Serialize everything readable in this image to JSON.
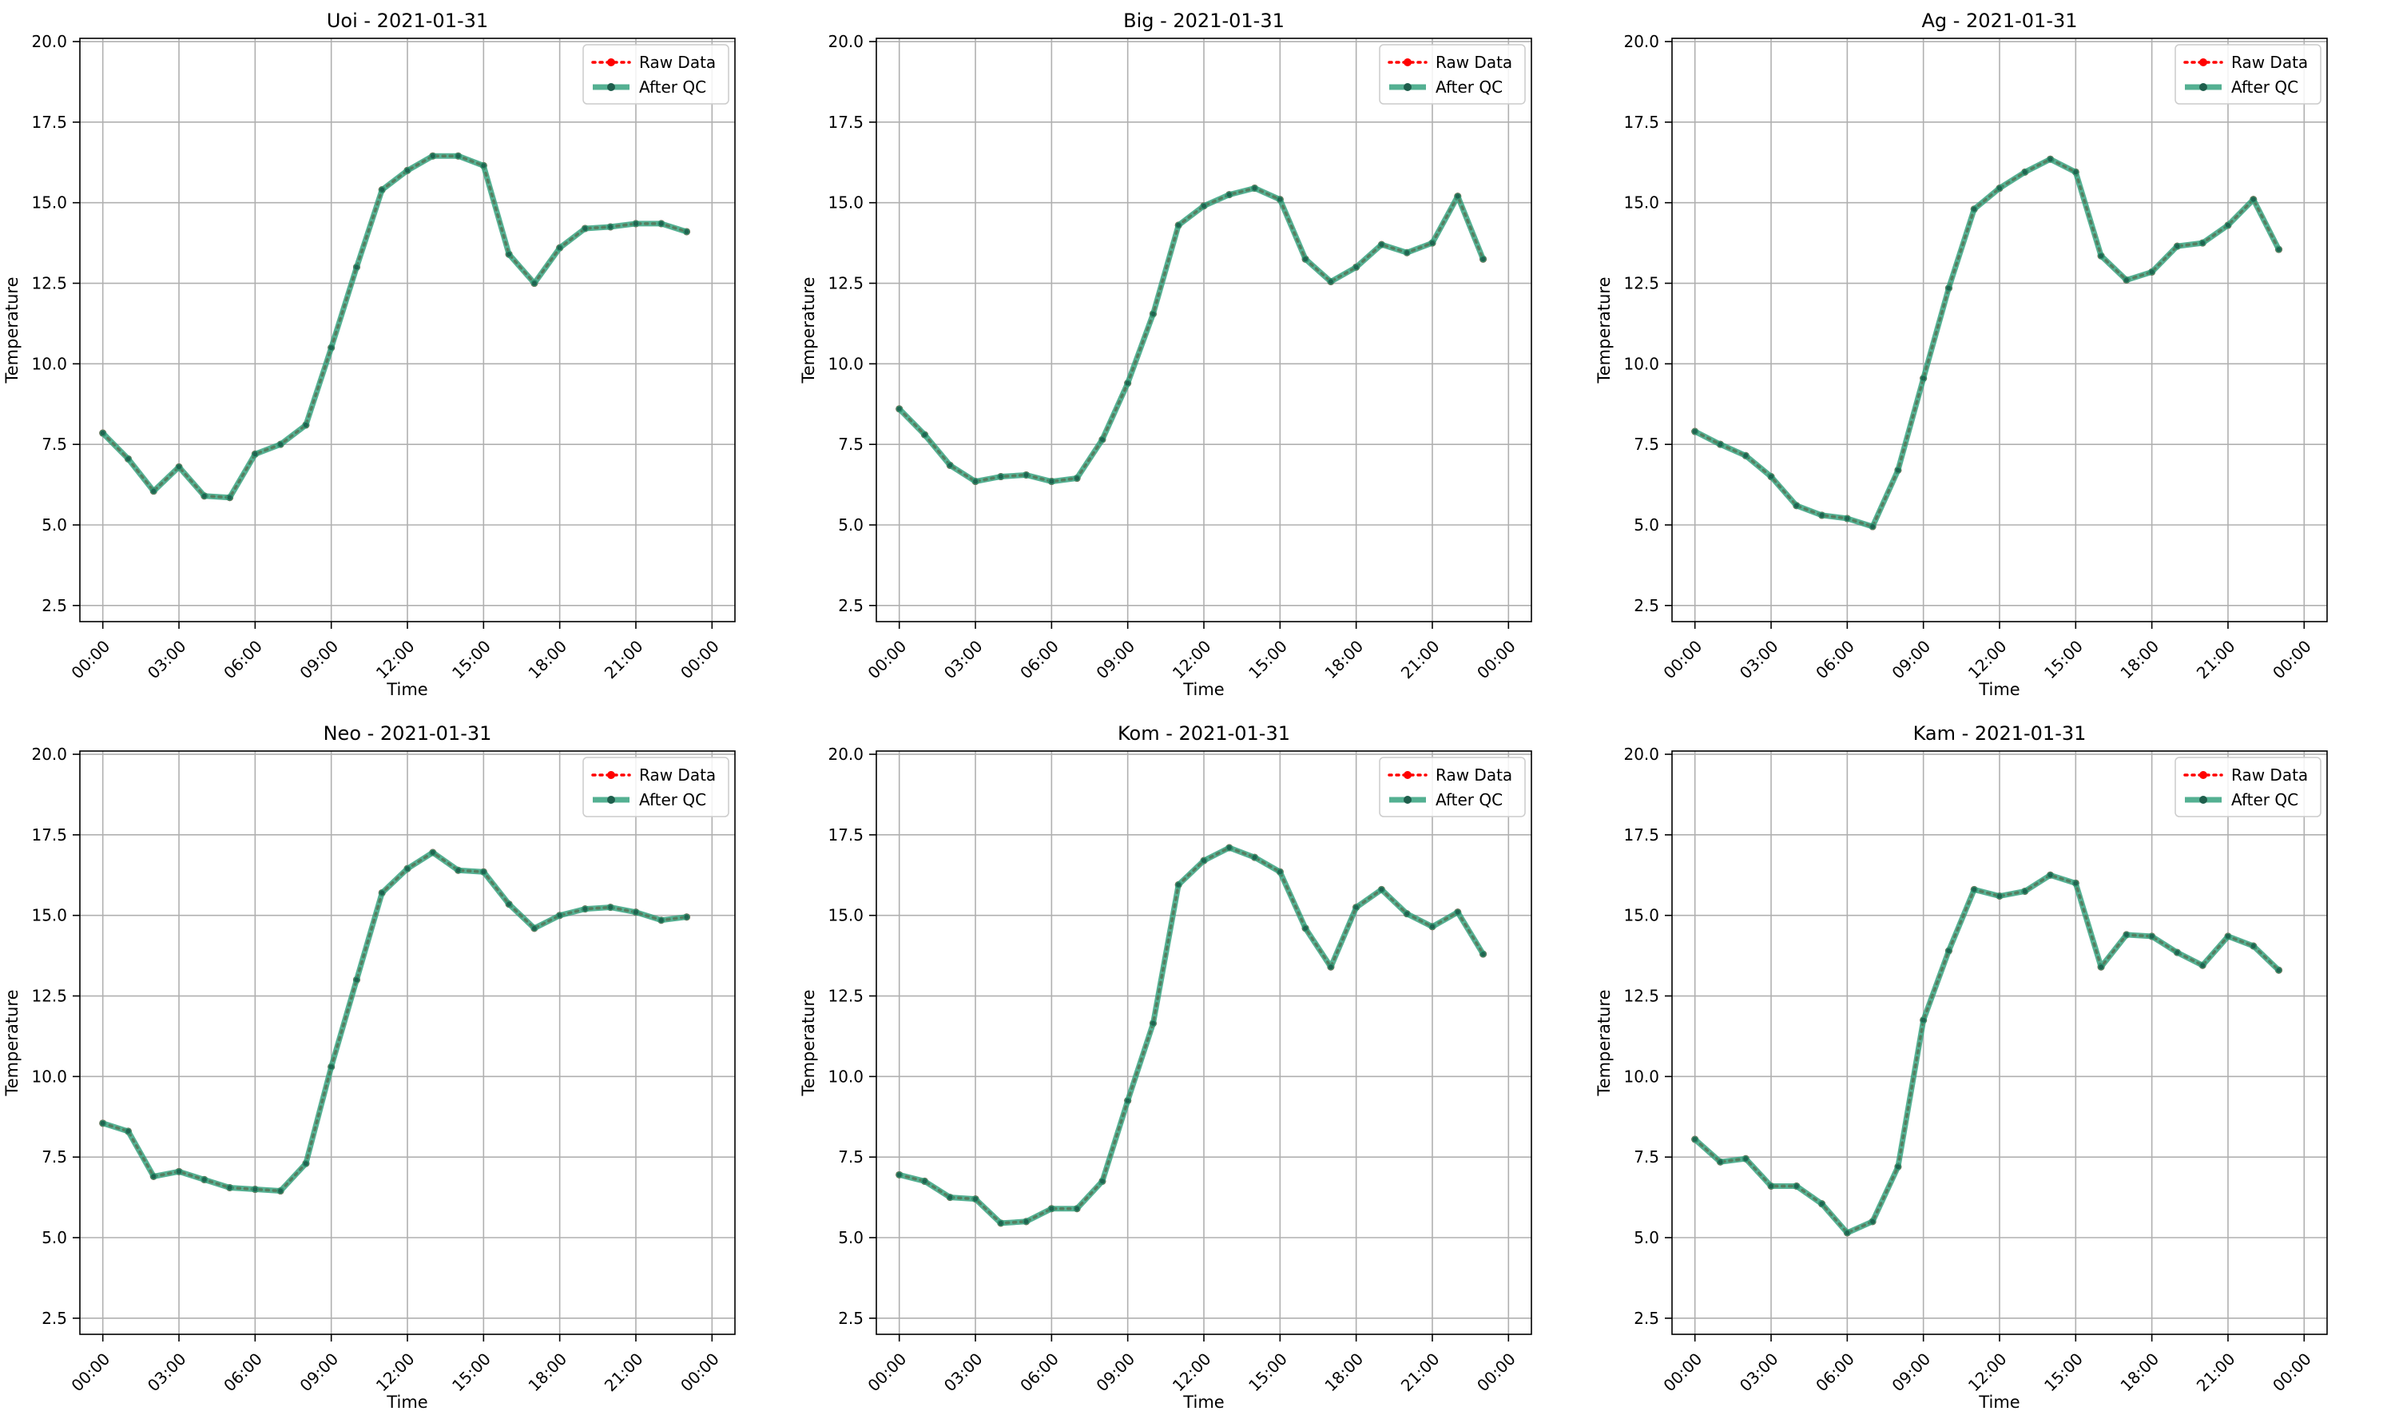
{
  "figure": {
    "xlabel": "Time",
    "ylabel": "Temperature",
    "legend": {
      "raw_label": "Raw Data",
      "qc_label": "After QC",
      "placement": "top-right"
    },
    "colors": {
      "raw": "#ff0000",
      "qc": "#2a9d78",
      "grid": "#b0b0b0",
      "axis": "#000000"
    }
  },
  "chart_data": [
    {
      "type": "line",
      "title": "Uoi - 2021-01-31",
      "xlabel": "Time",
      "ylabel": "Temperature",
      "ylim": [
        2.0,
        20.1
      ],
      "yticks": [
        "2.5",
        "5.0",
        "7.5",
        "10.0",
        "12.5",
        "15.0",
        "17.5",
        "20.0"
      ],
      "xticks": [
        "00:00",
        "03:00",
        "06:00",
        "09:00",
        "12:00",
        "15:00",
        "18:00",
        "21:00",
        "00:00"
      ],
      "grid": true,
      "legend": "top-right",
      "x": [
        "00:00",
        "01:00",
        "02:00",
        "03:00",
        "04:00",
        "05:00",
        "06:00",
        "07:00",
        "08:00",
        "09:00",
        "10:00",
        "11:00",
        "12:00",
        "13:00",
        "14:00",
        "15:00",
        "16:00",
        "17:00",
        "18:00",
        "19:00",
        "20:00",
        "21:00",
        "22:00",
        "23:00"
      ],
      "series": [
        {
          "name": "Raw Data",
          "values": [
            7.85,
            7.05,
            6.05,
            6.8,
            5.9,
            5.85,
            7.2,
            7.5,
            8.1,
            10.5,
            13.0,
            15.4,
            16.0,
            16.45,
            16.45,
            16.15,
            13.4,
            12.5,
            13.6,
            14.2,
            14.25,
            14.35,
            14.35,
            14.1
          ]
        },
        {
          "name": "After QC",
          "values": [
            7.85,
            7.05,
            6.05,
            6.8,
            5.9,
            5.85,
            7.2,
            7.5,
            8.1,
            10.5,
            13.0,
            15.4,
            16.0,
            16.45,
            16.45,
            16.15,
            13.4,
            12.5,
            13.6,
            14.2,
            14.25,
            14.35,
            14.35,
            14.1
          ]
        }
      ]
    },
    {
      "type": "line",
      "title": "Big - 2021-01-31",
      "xlabel": "Time",
      "ylabel": "Temperature",
      "ylim": [
        2.0,
        20.1
      ],
      "yticks": [
        "2.5",
        "5.0",
        "7.5",
        "10.0",
        "12.5",
        "15.0",
        "17.5",
        "20.0"
      ],
      "xticks": [
        "00:00",
        "03:00",
        "06:00",
        "09:00",
        "12:00",
        "15:00",
        "18:00",
        "21:00",
        "00:00"
      ],
      "grid": true,
      "legend": "top-right",
      "x": [
        "00:00",
        "01:00",
        "02:00",
        "03:00",
        "04:00",
        "05:00",
        "06:00",
        "07:00",
        "08:00",
        "09:00",
        "10:00",
        "11:00",
        "12:00",
        "13:00",
        "14:00",
        "15:00",
        "16:00",
        "17:00",
        "18:00",
        "19:00",
        "20:00",
        "21:00",
        "22:00",
        "23:00"
      ],
      "series": [
        {
          "name": "Raw Data",
          "values": [
            8.6,
            7.8,
            6.85,
            6.35,
            6.5,
            6.55,
            6.35,
            6.45,
            7.65,
            9.4,
            11.55,
            14.3,
            14.9,
            15.25,
            15.45,
            15.1,
            13.25,
            12.55,
            13.0,
            13.7,
            13.45,
            13.75,
            15.2,
            13.25
          ]
        },
        {
          "name": "After QC",
          "values": [
            8.6,
            7.8,
            6.85,
            6.35,
            6.5,
            6.55,
            6.35,
            6.45,
            7.65,
            9.4,
            11.55,
            14.3,
            14.9,
            15.25,
            15.45,
            15.1,
            13.25,
            12.55,
            13.0,
            13.7,
            13.45,
            13.75,
            15.2,
            13.25
          ]
        }
      ]
    },
    {
      "type": "line",
      "title": "Ag - 2021-01-31",
      "xlabel": "Time",
      "ylabel": "Temperature",
      "ylim": [
        2.0,
        20.1
      ],
      "yticks": [
        "2.5",
        "5.0",
        "7.5",
        "10.0",
        "12.5",
        "15.0",
        "17.5",
        "20.0"
      ],
      "xticks": [
        "00:00",
        "03:00",
        "06:00",
        "09:00",
        "12:00",
        "15:00",
        "18:00",
        "21:00",
        "00:00"
      ],
      "grid": true,
      "legend": "top-right",
      "x": [
        "00:00",
        "01:00",
        "02:00",
        "03:00",
        "04:00",
        "05:00",
        "06:00",
        "07:00",
        "08:00",
        "09:00",
        "10:00",
        "11:00",
        "12:00",
        "13:00",
        "14:00",
        "15:00",
        "16:00",
        "17:00",
        "18:00",
        "19:00",
        "20:00",
        "21:00",
        "22:00",
        "23:00"
      ],
      "series": [
        {
          "name": "Raw Data",
          "values": [
            7.9,
            7.5,
            7.15,
            6.5,
            5.6,
            5.3,
            5.2,
            4.95,
            6.7,
            9.55,
            12.35,
            14.8,
            15.45,
            15.95,
            16.35,
            15.95,
            13.35,
            12.6,
            12.85,
            13.65,
            13.75,
            14.3,
            15.1,
            13.55
          ]
        },
        {
          "name": "After QC",
          "values": [
            7.9,
            7.5,
            7.15,
            6.5,
            5.6,
            5.3,
            5.2,
            4.95,
            6.7,
            9.55,
            12.35,
            14.8,
            15.45,
            15.95,
            16.35,
            15.95,
            13.35,
            12.6,
            12.85,
            13.65,
            13.75,
            14.3,
            15.1,
            13.55
          ]
        }
      ]
    },
    {
      "type": "line",
      "title": "Neo - 2021-01-31",
      "xlabel": "Time",
      "ylabel": "Temperature",
      "ylim": [
        2.0,
        20.1
      ],
      "yticks": [
        "2.5",
        "5.0",
        "7.5",
        "10.0",
        "12.5",
        "15.0",
        "17.5",
        "20.0"
      ],
      "xticks": [
        "00:00",
        "03:00",
        "06:00",
        "09:00",
        "12:00",
        "15:00",
        "18:00",
        "21:00",
        "00:00"
      ],
      "grid": true,
      "legend": "top-right",
      "x": [
        "00:00",
        "01:00",
        "02:00",
        "03:00",
        "04:00",
        "05:00",
        "06:00",
        "07:00",
        "08:00",
        "09:00",
        "10:00",
        "11:00",
        "12:00",
        "13:00",
        "14:00",
        "15:00",
        "16:00",
        "17:00",
        "18:00",
        "19:00",
        "20:00",
        "21:00",
        "22:00",
        "23:00"
      ],
      "series": [
        {
          "name": "Raw Data",
          "values": [
            8.55,
            8.3,
            6.9,
            7.05,
            6.8,
            6.55,
            6.5,
            6.45,
            7.3,
            10.3,
            13.0,
            15.7,
            16.45,
            16.95,
            16.4,
            16.35,
            15.35,
            14.6,
            15.0,
            15.2,
            15.25,
            15.1,
            14.85,
            14.95
          ]
        },
        {
          "name": "After QC",
          "values": [
            8.55,
            8.3,
            6.9,
            7.05,
            6.8,
            6.55,
            6.5,
            6.45,
            7.3,
            10.3,
            13.0,
            15.7,
            16.45,
            16.95,
            16.4,
            16.35,
            15.35,
            14.6,
            15.0,
            15.2,
            15.25,
            15.1,
            14.85,
            14.95
          ]
        }
      ]
    },
    {
      "type": "line",
      "title": "Kom - 2021-01-31",
      "xlabel": "Time",
      "ylabel": "Temperature",
      "ylim": [
        2.0,
        20.1
      ],
      "yticks": [
        "2.5",
        "5.0",
        "7.5",
        "10.0",
        "12.5",
        "15.0",
        "17.5",
        "20.0"
      ],
      "xticks": [
        "00:00",
        "03:00",
        "06:00",
        "09:00",
        "12:00",
        "15:00",
        "18:00",
        "21:00",
        "00:00"
      ],
      "grid": true,
      "legend": "top-right",
      "x": [
        "00:00",
        "01:00",
        "02:00",
        "03:00",
        "04:00",
        "05:00",
        "06:00",
        "07:00",
        "08:00",
        "09:00",
        "10:00",
        "11:00",
        "12:00",
        "13:00",
        "14:00",
        "15:00",
        "16:00",
        "17:00",
        "18:00",
        "19:00",
        "20:00",
        "21:00",
        "22:00",
        "23:00"
      ],
      "series": [
        {
          "name": "Raw Data",
          "values": [
            6.95,
            6.75,
            6.25,
            6.2,
            5.45,
            5.5,
            5.9,
            5.9,
            6.75,
            9.25,
            11.65,
            15.95,
            16.7,
            17.1,
            16.8,
            16.35,
            14.6,
            13.4,
            15.25,
            15.8,
            15.05,
            14.65,
            15.1,
            13.8
          ]
        },
        {
          "name": "After QC",
          "values": [
            6.95,
            6.75,
            6.25,
            6.2,
            5.45,
            5.5,
            5.9,
            5.9,
            6.75,
            9.25,
            11.65,
            15.95,
            16.7,
            17.1,
            16.8,
            16.35,
            14.6,
            13.4,
            15.25,
            15.8,
            15.05,
            14.65,
            15.1,
            13.8
          ]
        }
      ]
    },
    {
      "type": "line",
      "title": "Kam - 2021-01-31",
      "xlabel": "Time",
      "ylabel": "Temperature",
      "ylim": [
        2.0,
        20.1
      ],
      "yticks": [
        "2.5",
        "5.0",
        "7.5",
        "10.0",
        "12.5",
        "15.0",
        "17.5",
        "20.0"
      ],
      "xticks": [
        "00:00",
        "03:00",
        "06:00",
        "09:00",
        "12:00",
        "15:00",
        "18:00",
        "21:00",
        "00:00"
      ],
      "grid": true,
      "legend": "top-right",
      "x": [
        "00:00",
        "01:00",
        "02:00",
        "03:00",
        "04:00",
        "05:00",
        "06:00",
        "07:00",
        "08:00",
        "09:00",
        "10:00",
        "11:00",
        "12:00",
        "13:00",
        "14:00",
        "15:00",
        "16:00",
        "17:00",
        "18:00",
        "19:00",
        "20:00",
        "21:00",
        "22:00",
        "23:00"
      ],
      "series": [
        {
          "name": "Raw Data",
          "values": [
            8.05,
            7.35,
            7.45,
            6.6,
            6.6,
            6.05,
            5.15,
            5.5,
            7.2,
            11.75,
            13.9,
            15.8,
            15.6,
            15.75,
            16.25,
            16.0,
            13.4,
            14.4,
            14.35,
            13.85,
            13.45,
            14.35,
            14.05,
            13.3
          ]
        },
        {
          "name": "After QC",
          "values": [
            8.05,
            7.35,
            7.45,
            6.6,
            6.6,
            6.05,
            5.15,
            5.5,
            7.2,
            11.75,
            13.9,
            15.8,
            15.6,
            15.75,
            16.25,
            16.0,
            13.4,
            14.4,
            14.35,
            13.85,
            13.45,
            14.35,
            14.05,
            13.3
          ]
        }
      ]
    }
  ]
}
